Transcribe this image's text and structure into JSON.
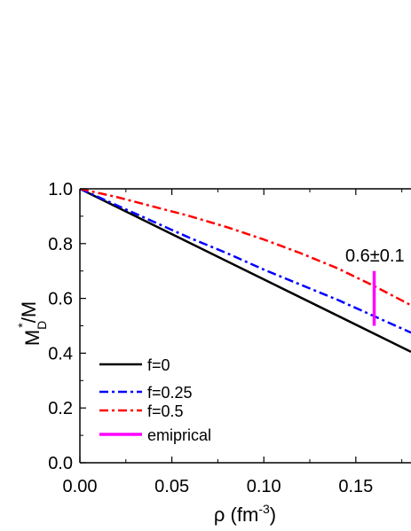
{
  "chart_data": {
    "type": "line",
    "xlabel": "ρ (fm",
    "xlabel_exp": "-3",
    "xlabel_close": ")",
    "ylabel": {
      "main": "M",
      "sup": "*",
      "sub": "D",
      "tail": "/M"
    },
    "xlim": [
      0.0,
      0.18
    ],
    "ylim": [
      0.0,
      1.0
    ],
    "xticks": [
      "0.00",
      "0.05",
      "0.10",
      "0.15"
    ],
    "xtick_values": [
      0.0,
      0.05,
      0.1,
      0.15
    ],
    "yticks": [
      "0.0",
      "0.2",
      "0.4",
      "0.6",
      "0.8",
      "1.0"
    ],
    "ytick_values": [
      0.0,
      0.2,
      0.4,
      0.6,
      0.8,
      1.0
    ],
    "series": [
      {
        "name": "f=0",
        "color": "#000000",
        "style": "solid",
        "points": [
          [
            0.0,
            1.0
          ],
          [
            0.18,
            0.405
          ]
        ]
      },
      {
        "name": "f=0.25",
        "color": "#0000ff",
        "style": "dash-dot",
        "points": [
          [
            0.0,
            1.0
          ],
          [
            0.02,
            0.94
          ],
          [
            0.04,
            0.88
          ],
          [
            0.06,
            0.82
          ],
          [
            0.08,
            0.765
          ],
          [
            0.1,
            0.705
          ],
          [
            0.12,
            0.65
          ],
          [
            0.14,
            0.595
          ],
          [
            0.16,
            0.535
          ],
          [
            0.18,
            0.475
          ]
        ]
      },
      {
        "name": "f=0.5",
        "color": "#ff0000",
        "style": "dash-dot",
        "points": [
          [
            0.0,
            1.0
          ],
          [
            0.02,
            0.97
          ],
          [
            0.04,
            0.935
          ],
          [
            0.06,
            0.9
          ],
          [
            0.08,
            0.86
          ],
          [
            0.1,
            0.815
          ],
          [
            0.12,
            0.765
          ],
          [
            0.14,
            0.71
          ],
          [
            0.16,
            0.645
          ],
          [
            0.18,
            0.575
          ]
        ]
      }
    ],
    "empirical": {
      "name": "emiprical",
      "color": "#ff00ff",
      "x": 0.16,
      "y_low": 0.5,
      "y_high": 0.7,
      "label": "0.6±0.1"
    },
    "legend_position": "bottom-left",
    "grid": false
  }
}
